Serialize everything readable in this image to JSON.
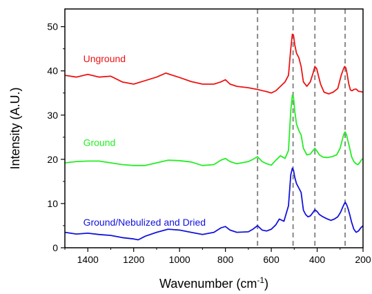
{
  "chart_data": {
    "type": "line",
    "title": "",
    "xlabel": "Wavenumber (cm",
    "xlabel_superscript": "-1",
    "xlabel_suffix": ")",
    "ylabel": "Intensity (A.U.)",
    "xlim": [
      1500,
      200
    ],
    "x_reversed": true,
    "ylim": [
      0,
      54
    ],
    "x_ticks": [
      1400,
      1200,
      1000,
      800,
      600,
      400,
      200
    ],
    "y_ticks": [
      0,
      10,
      20,
      30,
      40,
      50
    ],
    "grid": false,
    "reference_lines_x": [
      660,
      505,
      410,
      278
    ],
    "reference_line_color": "#888888",
    "series": [
      {
        "name": "Unground",
        "color": "#ee1111",
        "x": [
          1500,
          1450,
          1400,
          1350,
          1300,
          1250,
          1200,
          1150,
          1100,
          1060,
          1000,
          950,
          900,
          850,
          820,
          800,
          780,
          750,
          700,
          660,
          620,
          600,
          580,
          560,
          540,
          525,
          515,
          508,
          503,
          498,
          490,
          480,
          470,
          460,
          445,
          430,
          418,
          410,
          402,
          395,
          385,
          370,
          350,
          330,
          310,
          295,
          285,
          280,
          275,
          270,
          262,
          255,
          248,
          240,
          230,
          220,
          210,
          200
        ],
        "y": [
          39,
          38.6,
          39.2,
          38.6,
          38.8,
          37.5,
          37,
          37.8,
          38.6,
          39.5,
          38.5,
          37.6,
          37,
          37,
          37.5,
          38,
          37,
          36.5,
          36.2,
          35.8,
          35.3,
          35,
          35.5,
          36.5,
          37.5,
          39,
          45,
          48.3,
          48,
          46,
          44,
          43,
          41,
          37.5,
          36.5,
          37.5,
          39.5,
          41,
          40.5,
          39,
          37,
          35.2,
          34.8,
          35.2,
          36,
          39,
          40.5,
          41,
          40.7,
          39.5,
          37,
          35.7,
          35.5,
          35.8,
          35.9,
          35.4,
          35.3,
          35.2
        ]
      },
      {
        "name": "Ground",
        "color": "#22ee22",
        "x": [
          1500,
          1450,
          1400,
          1350,
          1300,
          1250,
          1200,
          1150,
          1100,
          1050,
          1000,
          950,
          900,
          850,
          820,
          800,
          780,
          750,
          700,
          680,
          660,
          640,
          620,
          600,
          580,
          560,
          540,
          525,
          515,
          508,
          503,
          498,
          490,
          480,
          470,
          460,
          445,
          430,
          418,
          410,
          400,
          390,
          375,
          355,
          335,
          315,
          300,
          290,
          283,
          278,
          272,
          265,
          258,
          250,
          240,
          230,
          222,
          215,
          208,
          200
        ],
        "y": [
          19.2,
          19.5,
          19.6,
          19.6,
          19.2,
          18.8,
          18.6,
          18.6,
          19.2,
          19.8,
          19.7,
          19.4,
          18.6,
          18.8,
          19.8,
          20.2,
          19.5,
          19,
          19.5,
          20,
          20.6,
          19.5,
          19,
          18.7,
          19.8,
          20.8,
          20.2,
          22,
          31,
          34.5,
          34,
          31,
          28,
          26.5,
          25.5,
          22.5,
          21,
          21.2,
          22,
          22.5,
          21.8,
          21,
          20.5,
          20.4,
          20.6,
          21,
          22.5,
          24.5,
          25.8,
          26.2,
          25.5,
          24,
          22.5,
          20.6,
          19.5,
          19,
          18.8,
          19.2,
          19.8,
          20.2
        ]
      },
      {
        "name": "Ground/Nebulized and Dried",
        "color": "#1111dd",
        "x": [
          1500,
          1450,
          1400,
          1350,
          1300,
          1250,
          1200,
          1180,
          1150,
          1100,
          1050,
          1000,
          950,
          900,
          850,
          820,
          800,
          780,
          750,
          700,
          680,
          660,
          640,
          620,
          600,
          580,
          565,
          545,
          525,
          515,
          508,
          503,
          498,
          490,
          480,
          470,
          460,
          450,
          440,
          430,
          418,
          410,
          400,
          390,
          375,
          355,
          340,
          325,
          310,
          298,
          290,
          283,
          278,
          272,
          265,
          258,
          250,
          240,
          230,
          220,
          210,
          200
        ],
        "y": [
          3.5,
          3.1,
          3.3,
          3,
          2.8,
          2.3,
          2,
          1.8,
          2.6,
          3.5,
          4.2,
          4,
          3.5,
          3,
          3.5,
          4.5,
          4.8,
          4,
          3.5,
          3.6,
          4.2,
          5,
          4,
          3.8,
          4.2,
          5.2,
          6.5,
          6,
          9.5,
          16.5,
          18,
          17.5,
          16,
          14.5,
          13.5,
          12.5,
          8.5,
          7.5,
          7,
          7.2,
          8,
          8.6,
          8.2,
          7.5,
          7,
          6.5,
          6.2,
          6.5,
          7,
          8,
          9,
          9.8,
          10.3,
          9.8,
          8.8,
          7.5,
          5.8,
          4.2,
          3.5,
          3.8,
          4.5,
          5
        ]
      }
    ]
  }
}
